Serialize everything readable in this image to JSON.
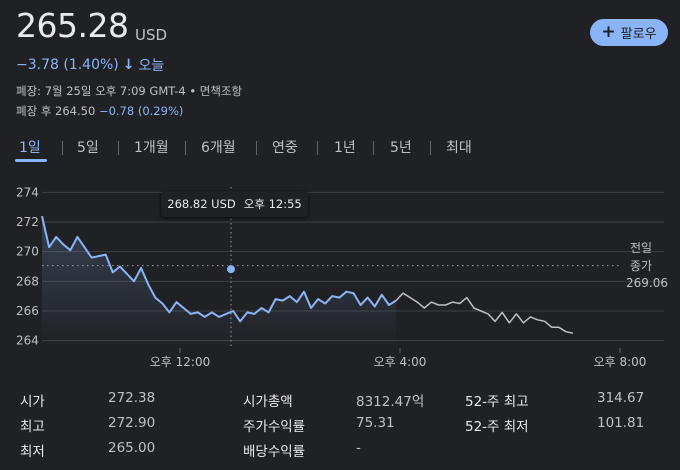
{
  "header": {
    "price": "265.28",
    "currency": "USD",
    "follow_label": "팔로우",
    "change": "−3.78 (1.40%)",
    "change_arrow": "↓",
    "change_period": "오늘",
    "close_info": "폐장: 7월 25일 오후 7:09 GMT-4 • 면책조항",
    "after_hours_label": "폐장 후 264.50",
    "after_hours_change": "−0.78 (0.29%)"
  },
  "tabs": [
    {
      "label": "1일",
      "active": true
    },
    {
      "label": "5일",
      "active": false
    },
    {
      "label": "1개월",
      "active": false
    },
    {
      "label": "6개월",
      "active": false
    },
    {
      "label": "연중",
      "active": false
    },
    {
      "label": "1년",
      "active": false
    },
    {
      "label": "5년",
      "active": false
    },
    {
      "label": "최대",
      "active": false
    }
  ],
  "tooltip": {
    "price": "268.82 USD",
    "time": "오후 12:55"
  },
  "chart_data": {
    "type": "line",
    "ylim": [
      263.5,
      274.5
    ],
    "yticks": [
      "274",
      "272",
      "270",
      "268",
      "266",
      "264"
    ],
    "xticks": [
      "오후 12:00",
      "오후 4:00",
      "오후 8:00"
    ],
    "previous_close_label": [
      "전일",
      "종가"
    ],
    "previous_close_value": "269.06",
    "previous_close": 269.06,
    "colors": {
      "session": "#8ab4f8",
      "after_hours": "#bdc1c6",
      "grid": "#3c4043"
    },
    "series": [
      {
        "values": [
          272.4,
          270.3,
          271.0,
          270.5,
          270.1,
          271.0,
          270.3,
          269.6,
          269.7,
          269.8,
          268.6,
          269.0,
          268.5,
          268.0,
          268.9,
          267.8,
          266.9,
          266.5,
          265.9,
          266.6,
          266.2,
          265.8,
          265.9,
          265.6,
          265.9,
          265.6,
          265.8,
          266.0,
          265.3,
          265.9,
          265.8,
          266.2,
          265.9,
          266.8,
          266.7,
          267.0,
          266.6,
          267.3,
          266.2,
          266.8,
          266.5,
          267.0,
          266.9,
          267.3,
          267.2,
          266.4,
          266.9,
          266.3,
          267.1,
          266.4,
          266.7,
          267.2,
          266.9,
          266.6,
          266.2,
          266.6,
          266.4,
          266.4,
          266.6,
          266.5,
          266.9,
          266.2,
          266.0,
          265.8,
          265.3,
          265.9,
          265.2,
          265.8,
          265.2,
          265.6,
          265.4,
          265.3,
          264.9,
          264.9,
          264.6,
          264.5
        ],
        "session_end_index": 50
      }
    ]
  },
  "stats": [
    {
      "label": "시가",
      "value": "272.38"
    },
    {
      "label": "최고",
      "value": "272.90"
    },
    {
      "label": "최저",
      "value": "265.00"
    },
    {
      "label": "시가총액",
      "value": "8312.47억"
    },
    {
      "label": "주가수익률",
      "value": "75.31"
    },
    {
      "label": "배당수익률",
      "value": "-"
    },
    {
      "label": "52-주 최고",
      "value": "314.67"
    },
    {
      "label": "52-주 최저",
      "value": "101.81"
    }
  ]
}
